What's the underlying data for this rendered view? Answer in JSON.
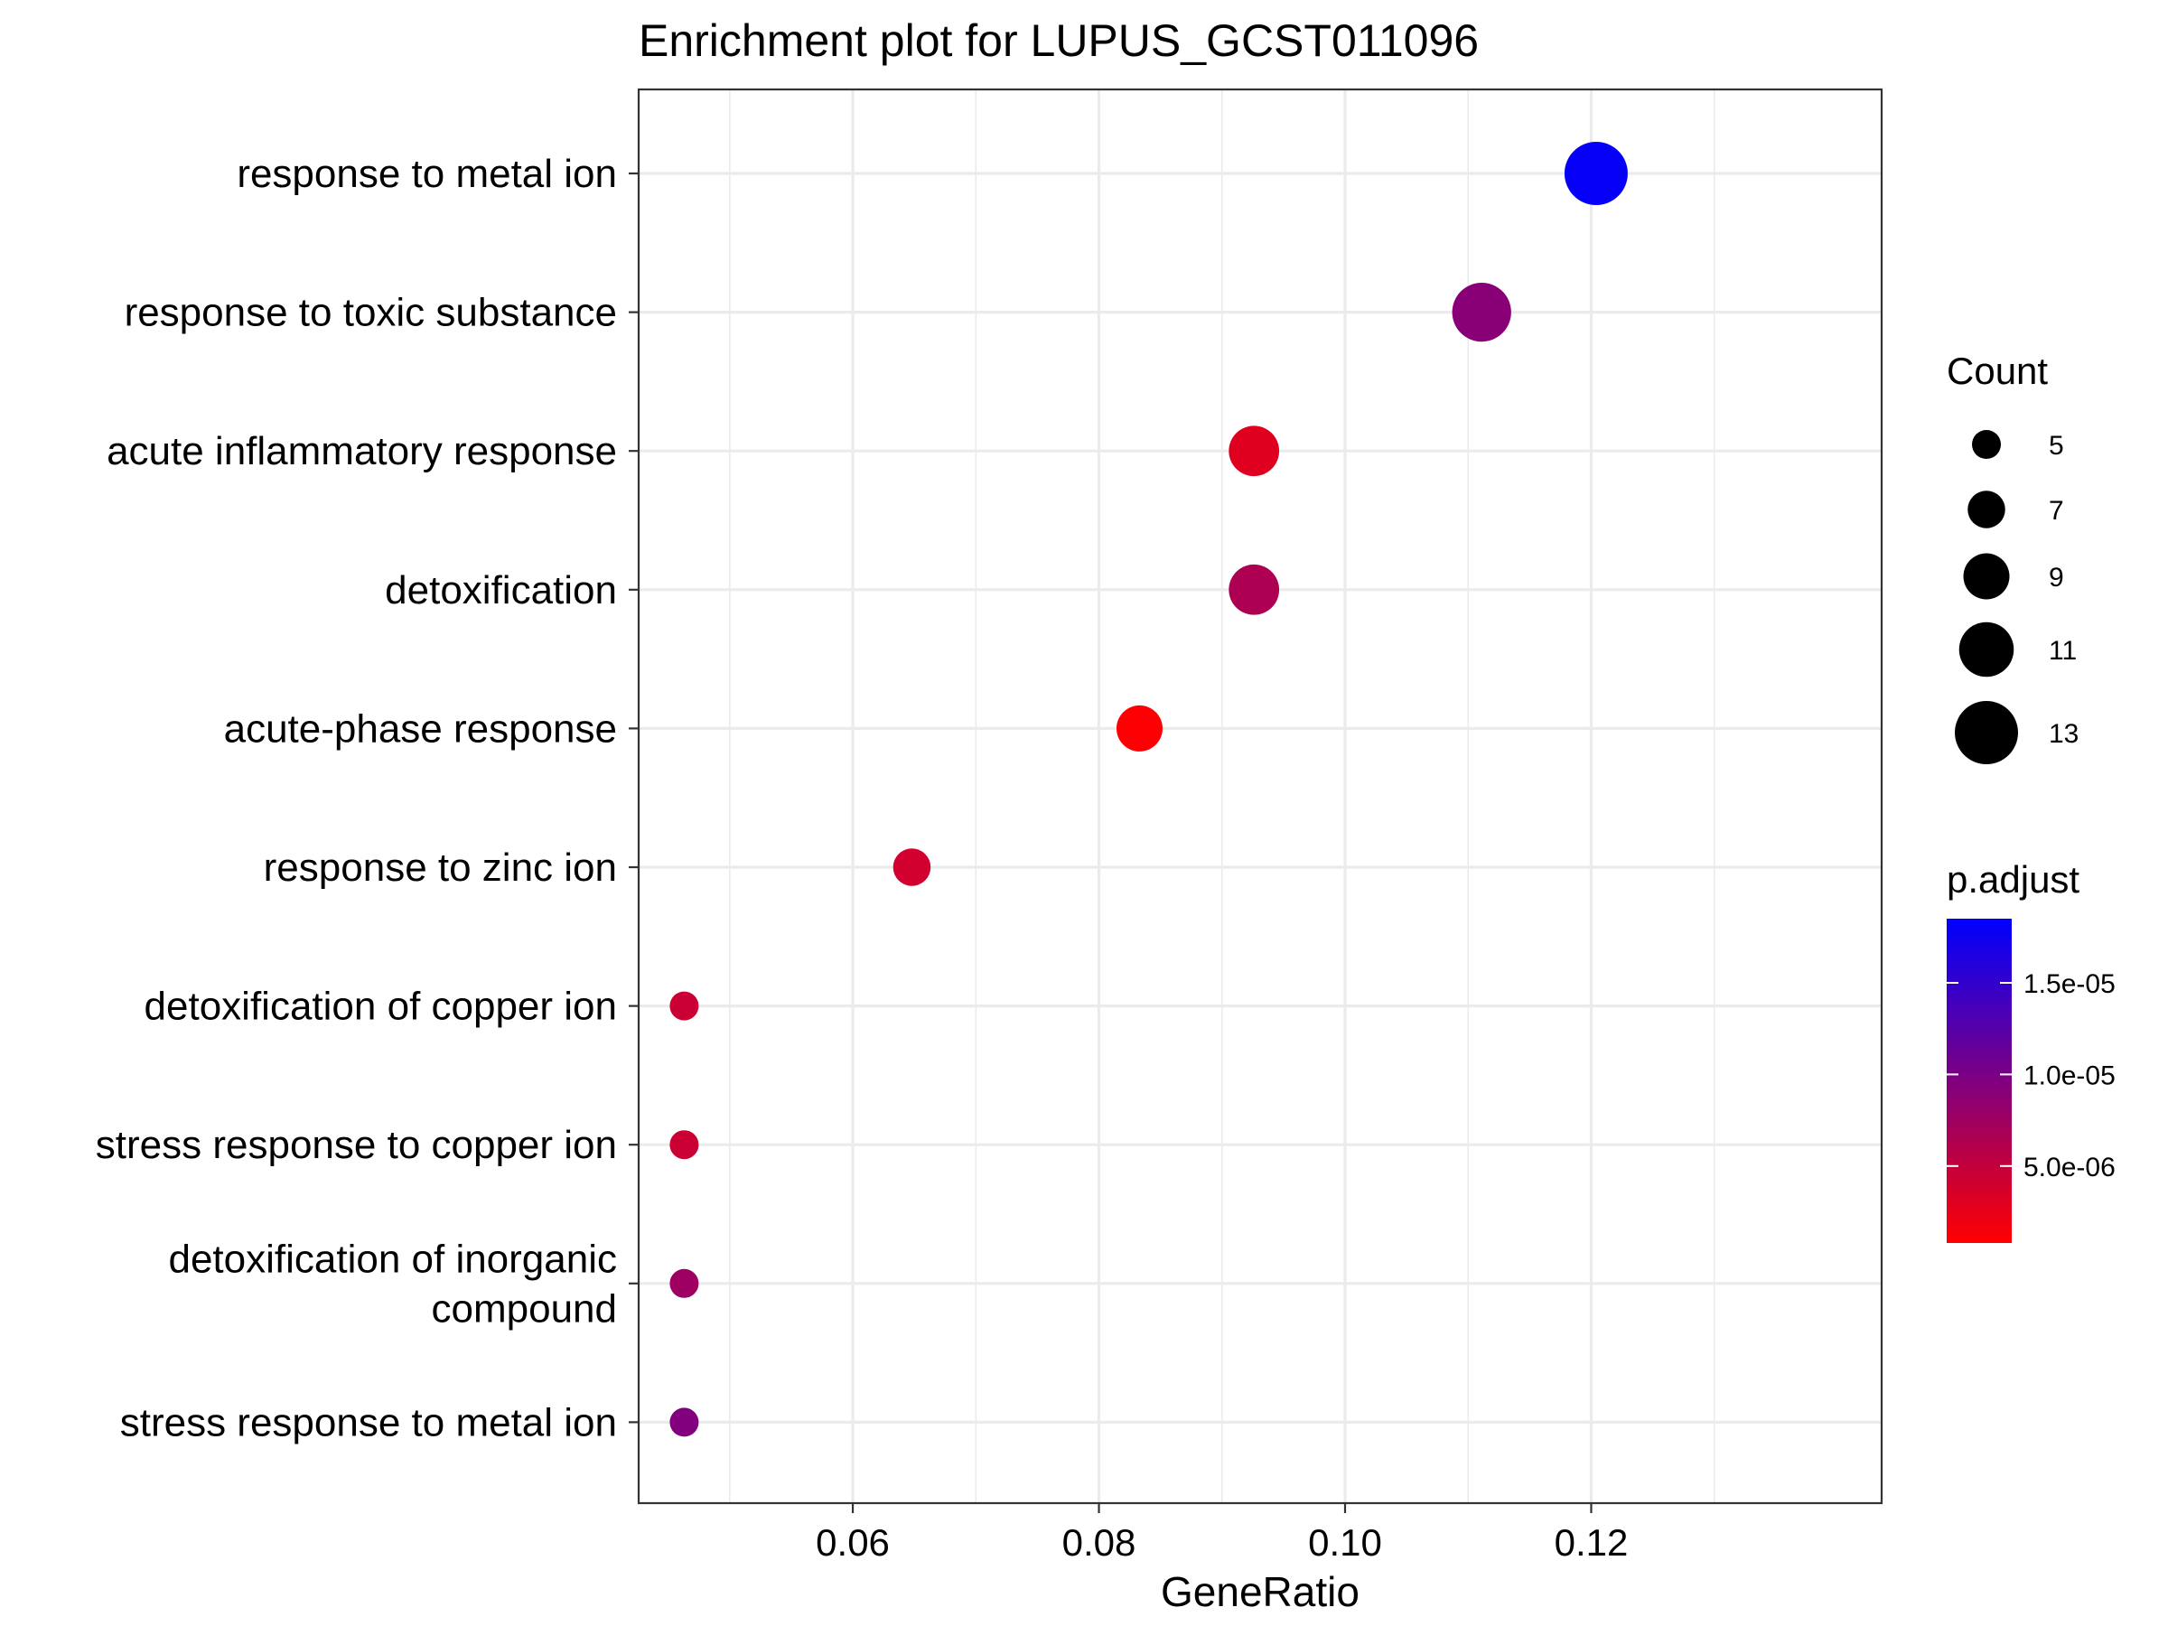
{
  "chart_data": {
    "type": "scatter",
    "title": "Enrichment plot for LUPUS_GCST011096",
    "xlabel": "GeneRatio",
    "ylabel": "",
    "xlim": [
      0.0426,
      0.1436
    ],
    "x_ticks": [
      "0.06",
      "0.08",
      "0.10",
      "0.12"
    ],
    "x_tick_values": [
      0.06,
      0.08,
      0.1,
      0.12
    ],
    "grid": true,
    "points": [
      {
        "label": "response to metal ion",
        "x": 0.1204,
        "count": 13,
        "p_adjust": 1.8e-05
      },
      {
        "label": "response to toxic substance",
        "x": 0.1111,
        "count": 12,
        "p_adjust": 9e-06
      },
      {
        "label": "acute inflammatory response",
        "x": 0.0926,
        "count": 10,
        "p_adjust": 3e-06
      },
      {
        "label": "detoxification",
        "x": 0.0926,
        "count": 10,
        "p_adjust": 6.5e-06
      },
      {
        "label": "acute-phase response",
        "x": 0.0833,
        "count": 9,
        "p_adjust": 1e-06
      },
      {
        "label": "response to zinc ion",
        "x": 0.0648,
        "count": 7,
        "p_adjust": 4e-06
      },
      {
        "label": "detoxification of copper ion",
        "x": 0.0463,
        "count": 5,
        "p_adjust": 4.5e-06
      },
      {
        "label": "stress response to copper ion",
        "x": 0.0463,
        "count": 5,
        "p_adjust": 4.5e-06
      },
      {
        "label": "detoxification of inorganic\ncompound",
        "x": 0.0463,
        "count": 5,
        "p_adjust": 7.5e-06
      },
      {
        "label": "stress response to metal ion",
        "x": 0.0463,
        "count": 5,
        "p_adjust": 9.5e-06
      }
    ],
    "size_legend": {
      "title": "Count",
      "values": [
        5,
        7,
        9,
        11,
        13
      ]
    },
    "color_legend": {
      "title": "p.adjust",
      "low_color": "#ff0000",
      "high_color": "#0000ff",
      "range": [
        8e-07,
        1.85e-05
      ],
      "tick_values": [
        5e-06,
        1e-05,
        1.5e-05
      ],
      "tick_labels": [
        "5.0e-06",
        "1.0e-05",
        "1.5e-05"
      ]
    }
  }
}
